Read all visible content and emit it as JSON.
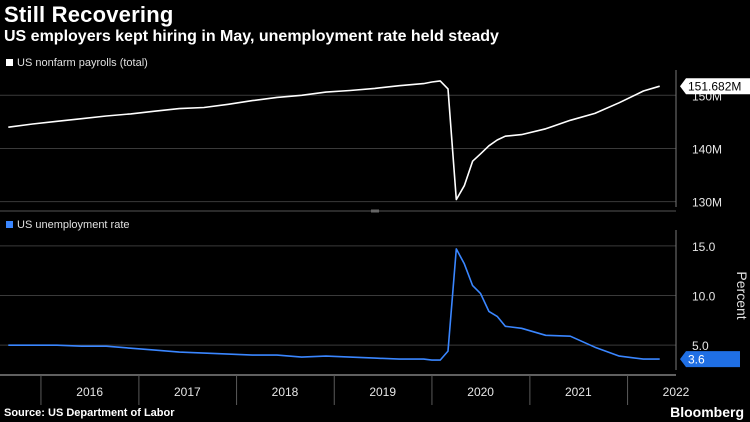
{
  "title": "Still Recovering",
  "subtitle": "US employers kept hiring in May, unemployment rate held steady",
  "source": "Source: US Department of Labor",
  "brand": "Bloomberg",
  "colors": {
    "payrolls": "#ffffff",
    "unemployment": "#3a86ff",
    "grid": "#3a3a3a",
    "axis": "#bfbfbf"
  },
  "chart_data": [
    {
      "type": "line",
      "legend": "US nonfarm payrolls (total)",
      "legend_position": "top-left",
      "y_axis_side": "right",
      "ylim": [
        129,
        154
      ],
      "yticks": [
        130,
        140,
        150
      ],
      "ytick_labels": [
        "130M",
        "140M",
        "150M"
      ],
      "last_value_label": "151.682M",
      "unit": "millions",
      "x": [
        "2015-09",
        "2015-12",
        "2016-03",
        "2016-06",
        "2016-09",
        "2016-12",
        "2017-03",
        "2017-06",
        "2017-09",
        "2017-12",
        "2018-03",
        "2018-06",
        "2018-09",
        "2018-12",
        "2019-03",
        "2019-06",
        "2019-09",
        "2019-12",
        "2020-01",
        "2020-02",
        "2020-03",
        "2020-04",
        "2020-05",
        "2020-06",
        "2020-07",
        "2020-08",
        "2020-09",
        "2020-10",
        "2020-12",
        "2021-03",
        "2021-06",
        "2021-09",
        "2021-12",
        "2022-03",
        "2022-05"
      ],
      "values": [
        144.0,
        144.6,
        145.1,
        145.6,
        146.1,
        146.5,
        147.0,
        147.5,
        147.7,
        148.3,
        149.0,
        149.6,
        150.0,
        150.6,
        150.9,
        151.3,
        151.8,
        152.2,
        152.5,
        152.7,
        151.2,
        130.4,
        133.0,
        137.6,
        139.0,
        140.5,
        141.6,
        142.3,
        142.6,
        143.7,
        145.3,
        146.6,
        148.6,
        150.8,
        151.7
      ]
    },
    {
      "type": "line",
      "legend": "US unemployment rate",
      "legend_position": "top-left",
      "y_axis_side": "right",
      "ylabel": "Percent",
      "ylim": [
        2.5,
        16.2
      ],
      "yticks": [
        5.0,
        10.0,
        15.0
      ],
      "ytick_labels": [
        "5.0",
        "10.0",
        "15.0"
      ],
      "last_value_label": "3.6",
      "x": [
        "2015-09",
        "2015-12",
        "2016-03",
        "2016-06",
        "2016-09",
        "2016-12",
        "2017-03",
        "2017-06",
        "2017-09",
        "2017-12",
        "2018-03",
        "2018-06",
        "2018-09",
        "2018-12",
        "2019-03",
        "2019-06",
        "2019-09",
        "2019-12",
        "2020-01",
        "2020-02",
        "2020-03",
        "2020-04",
        "2020-05",
        "2020-06",
        "2020-07",
        "2020-08",
        "2020-09",
        "2020-10",
        "2020-12",
        "2021-03",
        "2021-06",
        "2021-09",
        "2021-12",
        "2022-03",
        "2022-05"
      ],
      "values": [
        5.0,
        5.0,
        5.0,
        4.9,
        4.9,
        4.7,
        4.5,
        4.3,
        4.2,
        4.1,
        4.0,
        4.0,
        3.8,
        3.9,
        3.8,
        3.7,
        3.6,
        3.6,
        3.5,
        3.5,
        4.4,
        14.7,
        13.2,
        11.0,
        10.2,
        8.4,
        7.9,
        6.9,
        6.7,
        6.0,
        5.9,
        4.8,
        3.9,
        3.6,
        3.6
      ]
    }
  ],
  "x_axis": {
    "tick_labels": [
      "2016",
      "2017",
      "2018",
      "2019",
      "2020",
      "2021",
      "2022"
    ]
  }
}
